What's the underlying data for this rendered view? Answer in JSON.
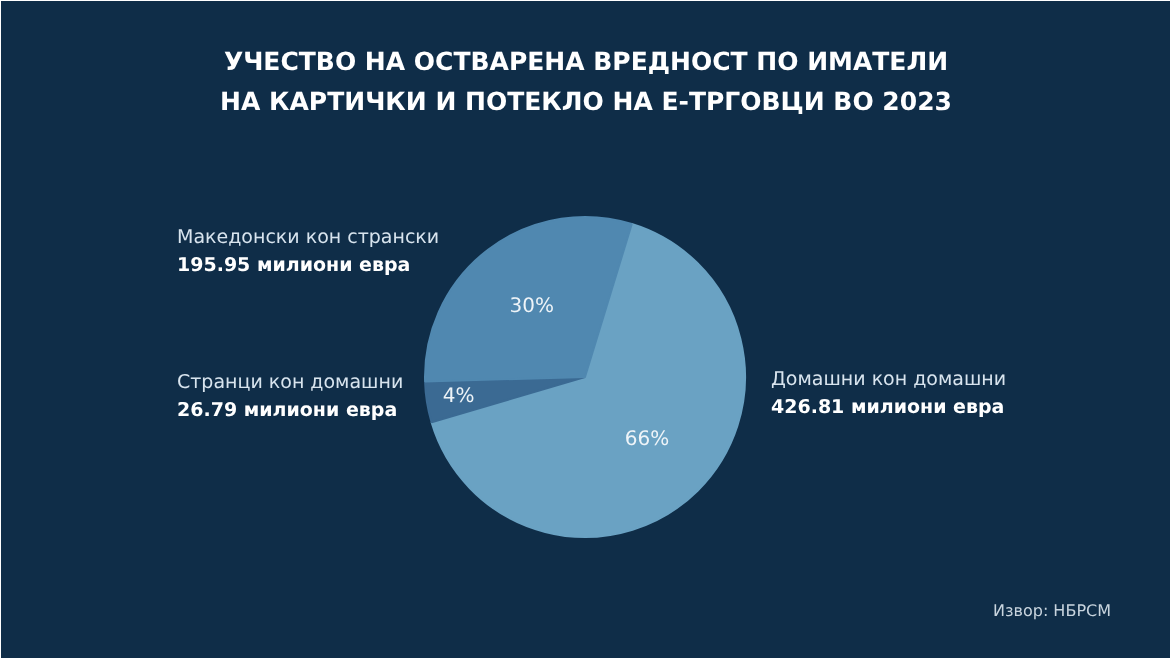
{
  "chart_data": {
    "type": "pie",
    "title": "УЧЕСТВО НА ОСТВАРЕНА ВРЕДНОСТ ПО ИМАТЕЛИ НА КАРТИЧКИ И ПОТЕКЛО НА Е-ТРГОВЦИ ВО 2023",
    "categories": [
      "Домашни кон домашни",
      "Странци кон домашни",
      "Македонски кон странски"
    ],
    "values": [
      426.81,
      26.79,
      195.95
    ],
    "colors": [
      "#6aa2c3",
      "#3b6a93",
      "#5088b0"
    ],
    "value_labels": [
      "426.81 милиони евра",
      "26.79 милиони евра",
      "195.95 милиони евра"
    ],
    "annotations": [
      {
        "text": "66%",
        "x": "Домашни кон домашни"
      },
      {
        "text": "4%",
        "x": "Странци кон домашни"
      },
      {
        "text": "30%",
        "x": "Македонски кон странски"
      },
      "Извор: НБРСМ"
    ]
  }
}
